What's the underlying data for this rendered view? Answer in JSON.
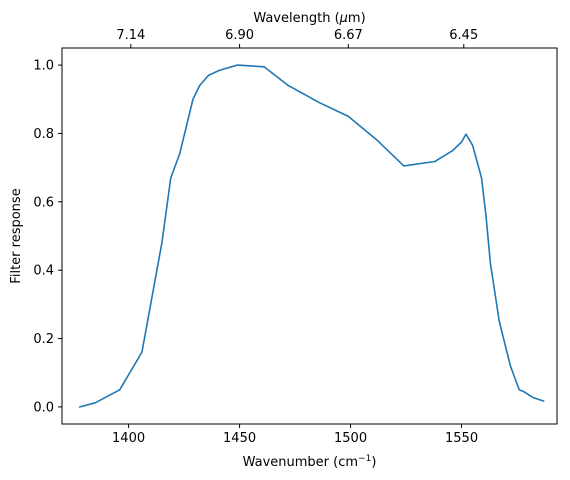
{
  "chart_data": {
    "type": "line",
    "xlabel": "Wavenumber (cm",
    "xlabel_sup": "−1",
    "xlabel_suffix": ")",
    "ylabel": "Filter response",
    "top_axis_label": "Wavelength (",
    "top_axis_label_mu": "μ",
    "top_axis_label_suffix": "m)",
    "xlim": [
      1370,
      1593
    ],
    "ylim": [
      -0.05,
      1.05
    ],
    "grid": false,
    "x_ticks": [
      {
        "value": 1400,
        "label": "1400"
      },
      {
        "value": 1450,
        "label": "1450"
      },
      {
        "value": 1500,
        "label": "1500"
      },
      {
        "value": 1550,
        "label": "1550"
      }
    ],
    "y_ticks": [
      {
        "value": 0.0,
        "label": "0.0"
      },
      {
        "value": 0.2,
        "label": "0.2"
      },
      {
        "value": 0.4,
        "label": "0.4"
      },
      {
        "value": 0.6,
        "label": "0.6"
      },
      {
        "value": 0.8,
        "label": "0.8"
      },
      {
        "value": 1.0,
        "label": "1.0"
      }
    ],
    "top_ticks": [
      {
        "value": 1401,
        "label": "7.14"
      },
      {
        "value": 1450,
        "label": "6.90"
      },
      {
        "value": 1499,
        "label": "6.67"
      },
      {
        "value": 1551,
        "label": "6.45"
      }
    ],
    "series": [
      {
        "color": "#1f77b4",
        "x": [
          1378,
          1385,
          1396,
          1406,
          1415,
          1419,
          1423,
          1429,
          1432,
          1436,
          1441,
          1449,
          1461,
          1472,
          1486,
          1499,
          1512,
          1524,
          1538,
          1546,
          1550,
          1552,
          1555,
          1559,
          1561,
          1563,
          1567,
          1572,
          1576,
          1578,
          1582,
          1587
        ],
        "y": [
          0.0,
          0.012,
          0.05,
          0.16,
          0.48,
          0.67,
          0.74,
          0.9,
          0.94,
          0.97,
          0.985,
          1.0,
          0.995,
          0.94,
          0.89,
          0.85,
          0.78,
          0.705,
          0.718,
          0.75,
          0.775,
          0.798,
          0.765,
          0.67,
          0.56,
          0.42,
          0.25,
          0.12,
          0.05,
          0.045,
          0.028,
          0.017
        ]
      }
    ]
  }
}
